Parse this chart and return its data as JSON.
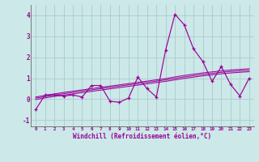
{
  "xlabel": "Windchill (Refroidissement éolien,°C)",
  "bg_color": "#cce8e8",
  "grid_color": "#aacccc",
  "line_color": "#990099",
  "x_data": [
    0,
    1,
    2,
    3,
    4,
    5,
    6,
    7,
    8,
    9,
    10,
    11,
    12,
    13,
    14,
    15,
    16,
    17,
    18,
    19,
    20,
    21,
    22,
    23
  ],
  "y_main": [
    -0.5,
    0.2,
    0.2,
    0.15,
    0.2,
    0.1,
    0.65,
    0.65,
    -0.1,
    -0.15,
    0.05,
    1.05,
    0.5,
    0.1,
    2.35,
    4.05,
    3.55,
    2.4,
    1.8,
    0.85,
    1.55,
    0.7,
    0.15,
    1.0
  ],
  "y_upper": [
    0.1,
    0.18,
    0.25,
    0.32,
    0.38,
    0.44,
    0.5,
    0.56,
    0.62,
    0.68,
    0.74,
    0.8,
    0.86,
    0.92,
    0.98,
    1.06,
    1.13,
    1.19,
    1.25,
    1.3,
    1.35,
    1.39,
    1.42,
    1.45
  ],
  "y_mid": [
    0.05,
    0.12,
    0.19,
    0.26,
    0.32,
    0.38,
    0.44,
    0.5,
    0.56,
    0.62,
    0.68,
    0.74,
    0.8,
    0.86,
    0.92,
    0.99,
    1.06,
    1.12,
    1.18,
    1.23,
    1.28,
    1.32,
    1.35,
    1.38
  ],
  "y_lower": [
    -0.02,
    0.06,
    0.13,
    0.19,
    0.25,
    0.31,
    0.37,
    0.43,
    0.49,
    0.55,
    0.61,
    0.67,
    0.73,
    0.79,
    0.85,
    0.92,
    0.99,
    1.05,
    1.11,
    1.16,
    1.21,
    1.25,
    1.28,
    1.31
  ],
  "ylim": [
    -1.3,
    4.5
  ],
  "xlim": [
    -0.5,
    23.5
  ],
  "yticks": [
    -1,
    0,
    1,
    2,
    3,
    4
  ],
  "xticks": [
    0,
    1,
    2,
    3,
    4,
    5,
    6,
    7,
    8,
    9,
    10,
    11,
    12,
    13,
    14,
    15,
    16,
    17,
    18,
    19,
    20,
    21,
    22,
    23
  ]
}
